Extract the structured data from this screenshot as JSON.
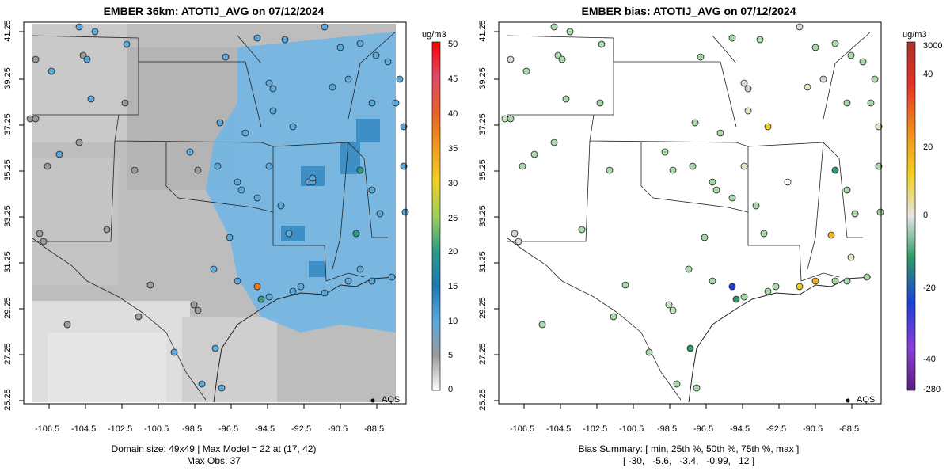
{
  "left_panel": {
    "title": "EMBER 36km: ATOTIJ_AVG on 07/12/2024",
    "footer_line1": "Domain size: 49x49 | Max Model = 22 at (17, 42)",
    "footer_line2": "Max Obs: 37",
    "legend_label": "AQS",
    "colorbar_unit": "ug/m3",
    "colorbar_ticks": [
      "0",
      "5",
      "10",
      "15",
      "20",
      "25",
      "30",
      "35",
      "40",
      "45",
      "50"
    ]
  },
  "right_panel": {
    "title": "EMBER bias: ATOTIJ_AVG on 07/12/2024",
    "footer_line1": "Bias Summary: [ min, 25th %, 50th %, 75th %, max ]",
    "footer_line2": "[ -30,   -5.6,   -3.4,   -0.99,   12 ]",
    "legend_label": "AQS",
    "colorbar_unit": "ug/m3",
    "colorbar_ticks": [
      "3000",
      "40",
      "20",
      "0",
      "-20",
      "-40",
      "-280"
    ]
  },
  "axes": {
    "x_ticks": [
      "-106.5",
      "-104.5",
      "-102.5",
      "-100.5",
      "-98.5",
      "-96.5",
      "-94.5",
      "-92.5",
      "-90.5",
      "-88.5"
    ],
    "y_ticks": [
      "41.25",
      "39.25",
      "37.25",
      "35.25",
      "33.25",
      "31.25",
      "29.25",
      "27.25",
      "25.25"
    ],
    "x_range": [
      -107.4,
      -88.2
    ],
    "y_range": [
      25.25,
      41.5
    ]
  },
  "colors": {
    "obs_site": "#5aa9dc",
    "bias_site": "#a9d8a8"
  }
}
